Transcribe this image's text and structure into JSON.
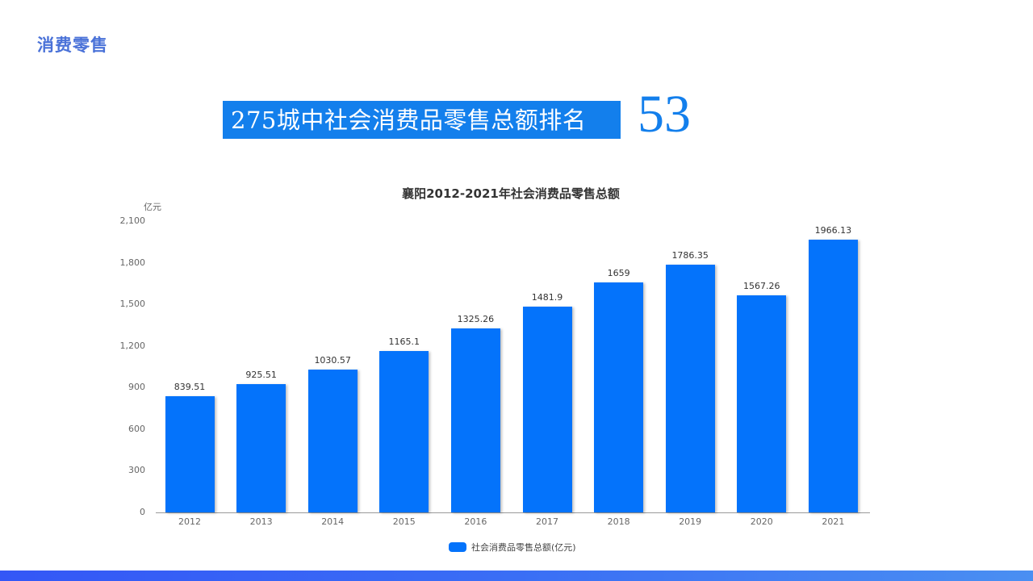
{
  "page": {
    "section_title": "消费零售",
    "rank_label": "275城中社会消费品零售总额排名",
    "rank_value": "53"
  },
  "colors": {
    "accent": "#137fec",
    "bar": "#0473fb",
    "section_title": "#4a72d8"
  },
  "chart_data": {
    "type": "bar",
    "title": "襄阳2012-2021年社会消费品零售总额",
    "ylabel": "亿元",
    "xlabel": "",
    "categories": [
      "2012",
      "2013",
      "2014",
      "2015",
      "2016",
      "2017",
      "2018",
      "2019",
      "2020",
      "2021"
    ],
    "values": [
      839.51,
      925.51,
      1030.57,
      1165.1,
      1325.26,
      1481.9,
      1659,
      1786.35,
      1567.26,
      1966.13
    ],
    "value_labels": [
      "839.51",
      "925.51",
      "1030.57",
      "1165.1",
      "1325.26",
      "1481.9",
      "1659",
      "1786.35",
      "1567.26",
      "1966.13"
    ],
    "series": [
      {
        "name": "社会消费品零售总额(亿元)",
        "values": [
          839.51,
          925.51,
          1030.57,
          1165.1,
          1325.26,
          1481.9,
          1659,
          1786.35,
          1567.26,
          1966.13
        ]
      }
    ],
    "yticks": [
      "0",
      "300",
      "600",
      "900",
      "1,200",
      "1,500",
      "1,800",
      "2,100"
    ],
    "ylim": [
      0,
      2100
    ],
    "grid": false,
    "legend_position": "bottom"
  }
}
